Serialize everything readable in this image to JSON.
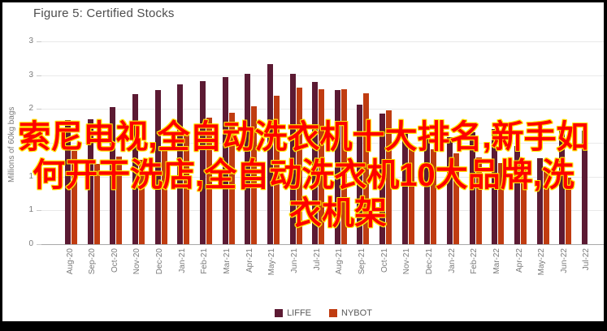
{
  "window": {
    "title": "Figure 5: Certified Stocks"
  },
  "watermark": {
    "lines": [
      "索尼电视,全自动洗衣机十大排名,新手如",
      "何开干洗店,全自动洗衣机10大品牌,洗",
      "衣机架"
    ],
    "text_color": "#fe0000",
    "outline_color": "#ffe900"
  },
  "chart_data": {
    "type": "bar",
    "title": "Figure 5: Certified Stocks",
    "xlabel": "",
    "ylabel": "Millions of 60kg bags",
    "ylim": [
      0,
      3
    ],
    "ytick_step": 0.5,
    "ytick_labels": [
      "0",
      "1",
      "1",
      "2",
      "2",
      "3",
      "3"
    ],
    "grid": true,
    "legend_position": "bottom",
    "categories": [
      "Aug-20",
      "Sep-20",
      "Oct-20",
      "Nov-20",
      "Dec-20",
      "Jan-21",
      "Feb-21",
      "Mar-21",
      "Apr-21",
      "May-21",
      "Jun-21",
      "Jul-21",
      "Aug-21",
      "Sep-21",
      "Oct-21",
      "Nov-21",
      "Dec-21",
      "Jan-22",
      "Feb-22",
      "Mar-22",
      "Apr-22",
      "May-22",
      "Jun-22",
      "Jul-22"
    ],
    "series": [
      {
        "name": "LIFFE",
        "color": "#5c1a33",
        "values": [
          1.84,
          1.85,
          2.03,
          2.22,
          2.28,
          2.37,
          2.41,
          2.47,
          2.52,
          2.67,
          2.52,
          2.4,
          2.28,
          2.06,
          1.93,
          1.64,
          1.63,
          1.58,
          1.66,
          1.7,
          1.45,
          1.27,
          1.72,
          1.68
        ]
      },
      {
        "name": "NYBOT",
        "color": "#c03c11",
        "values": [
          1.38,
          1.19,
          1.3,
          1.25,
          1.45,
          1.65,
          1.87,
          1.94,
          2.04,
          2.2,
          2.32,
          2.29,
          2.29,
          2.23,
          1.98,
          1.45,
          1.4,
          1.35,
          1.28,
          1.2,
          1.13,
          1.13,
          0.98,
          null
        ]
      }
    ]
  },
  "legend": {
    "items": [
      {
        "label": "LIFFE",
        "color": "#5c1a33"
      },
      {
        "label": "NYBOT",
        "color": "#c03c11"
      }
    ]
  }
}
